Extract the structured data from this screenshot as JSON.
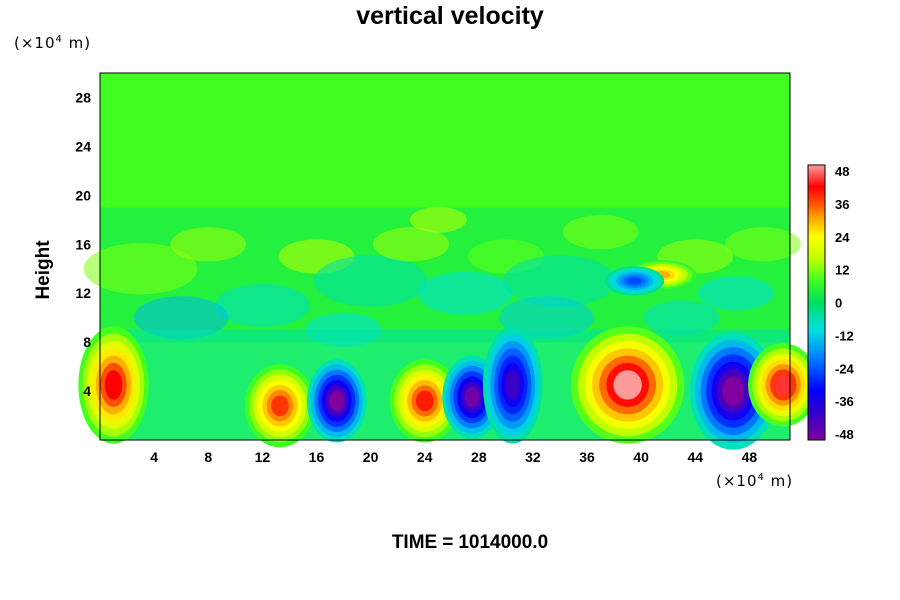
{
  "chart_data": {
    "type": "heatmap",
    "title": "vertical velocity",
    "ylabel": "Height",
    "xlabel": "",
    "y_unit": "(×10⁴ m)",
    "x_unit": "(×10⁴ m)",
    "unit_prefix": "(×10",
    "unit_exp": "4",
    "unit_suffix": " m)",
    "xlim": [
      0,
      51
    ],
    "ylim": [
      0,
      30
    ],
    "x_ticks": [
      "4",
      "8",
      "12",
      "16",
      "20",
      "24",
      "28",
      "32",
      "36",
      "40",
      "44",
      "48"
    ],
    "y_ticks": [
      "4",
      "8",
      "12",
      "16",
      "20",
      "24",
      "28"
    ],
    "colorbar": {
      "min": -48,
      "max": 48,
      "labels": [
        "48",
        "36",
        "24",
        "12",
        "0",
        "-12",
        "-24",
        "-36",
        "-48"
      ]
    },
    "grid": false,
    "features": [
      {
        "kind": "updraft",
        "x": 1.0,
        "y": 4.5,
        "peak": 42
      },
      {
        "kind": "updraft",
        "x": 13.3,
        "y": 2.8,
        "peak": 38
      },
      {
        "kind": "downdraft",
        "x": 17.5,
        "y": 3.2,
        "peak": -48
      },
      {
        "kind": "updraft",
        "x": 24.0,
        "y": 3.2,
        "peak": 40
      },
      {
        "kind": "downdraft",
        "x": 27.5,
        "y": 3.5,
        "peak": -46
      },
      {
        "kind": "downdraft",
        "x": 30.5,
        "y": 4.5,
        "peak": -40
      },
      {
        "kind": "updraft",
        "x": 39.0,
        "y": 4.5,
        "peak": 48
      },
      {
        "kind": "downdraft",
        "x": 46.8,
        "y": 4.0,
        "peak": -48
      },
      {
        "kind": "updraft",
        "x": 50.5,
        "y": 4.5,
        "peak": 44
      },
      {
        "kind": "updraft",
        "x": 41.5,
        "y": 13.5,
        "peak": 30
      },
      {
        "kind": "downdraft",
        "x": 39.5,
        "y": 13.0,
        "peak": -25
      }
    ]
  },
  "footer": {
    "time_label": "TIME",
    "time_eq": "=",
    "time_value": "1014000.0"
  }
}
